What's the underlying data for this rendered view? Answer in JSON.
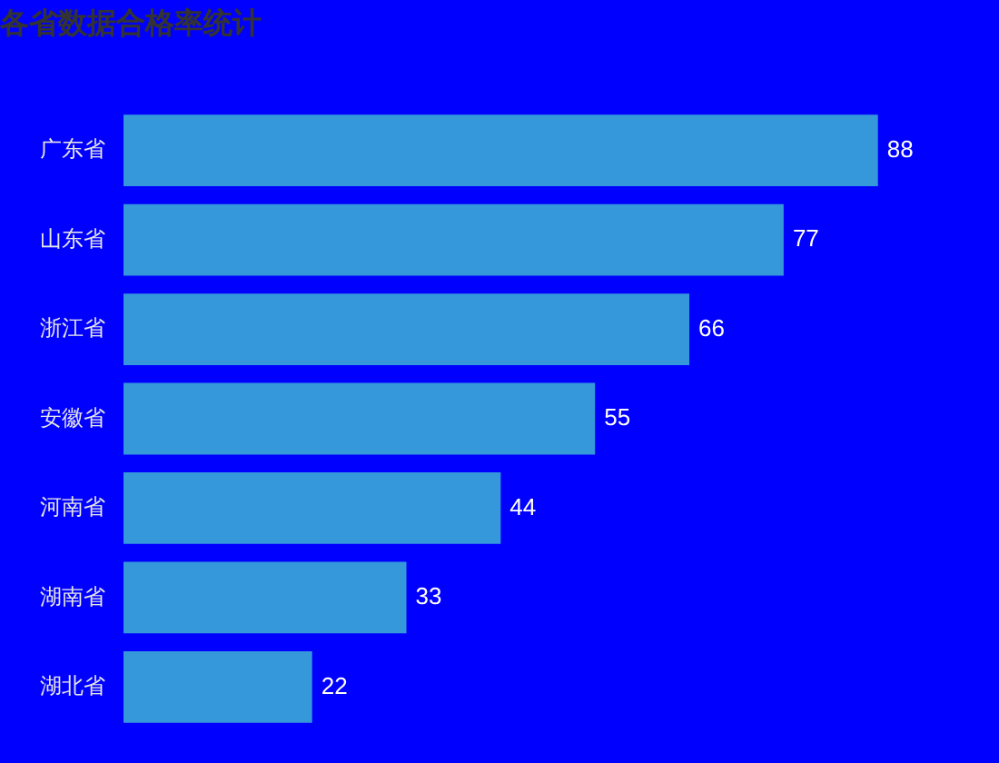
{
  "chart_data": {
    "type": "bar",
    "title": "各省数据合格率统计",
    "orientation": "horizontal",
    "categories": [
      "广东省",
      "山东省",
      "浙江省",
      "安徽省",
      "河南省",
      "湖南省",
      "湖北省"
    ],
    "values": [
      88,
      77,
      66,
      55,
      44,
      33,
      22
    ],
    "color": "#3498db",
    "data_labels": true
  }
}
